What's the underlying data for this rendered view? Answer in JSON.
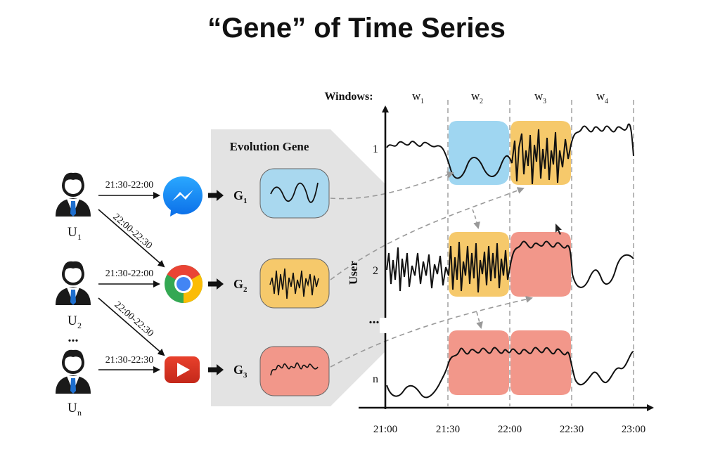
{
  "title": "“Gene” of Time Series",
  "users": [
    {
      "letter": "U",
      "sub": "1"
    },
    {
      "letter": "U",
      "sub": "2"
    },
    {
      "letter": "U",
      "sub": "n"
    }
  ],
  "users_ellipsis": "...",
  "edges": [
    {
      "label": "21:30-22:00"
    },
    {
      "label": "22:00-22:30"
    },
    {
      "label": "21:30-22:00"
    },
    {
      "label": "22:00-22:30"
    },
    {
      "label": "21:30-22:30"
    }
  ],
  "apps": [
    {
      "icon": "messenger-icon"
    },
    {
      "icon": "chrome-icon"
    },
    {
      "icon": "youtube-icon"
    }
  ],
  "evolution_gene": {
    "title": "Evolution Gene",
    "genes": [
      {
        "letter": "G",
        "sub": "1",
        "color": "#a9d8ef"
      },
      {
        "letter": "G",
        "sub": "2",
        "color": "#f6c96b"
      },
      {
        "letter": "G",
        "sub": "3",
        "color": "#f2978a"
      }
    ]
  },
  "timeline": {
    "windows_label": "Windows:",
    "windows": [
      {
        "letter": "w",
        "sub": "1"
      },
      {
        "letter": "w",
        "sub": "2"
      },
      {
        "letter": "w",
        "sub": "3"
      },
      {
        "letter": "w",
        "sub": "4"
      }
    ],
    "y_axis_label": "User",
    "y_ticks": [
      "1",
      "2",
      "n"
    ],
    "y_ellipsis": "...",
    "x_ticks": [
      "21:00",
      "21:30",
      "22:00",
      "22:30",
      "23:00"
    ]
  }
}
